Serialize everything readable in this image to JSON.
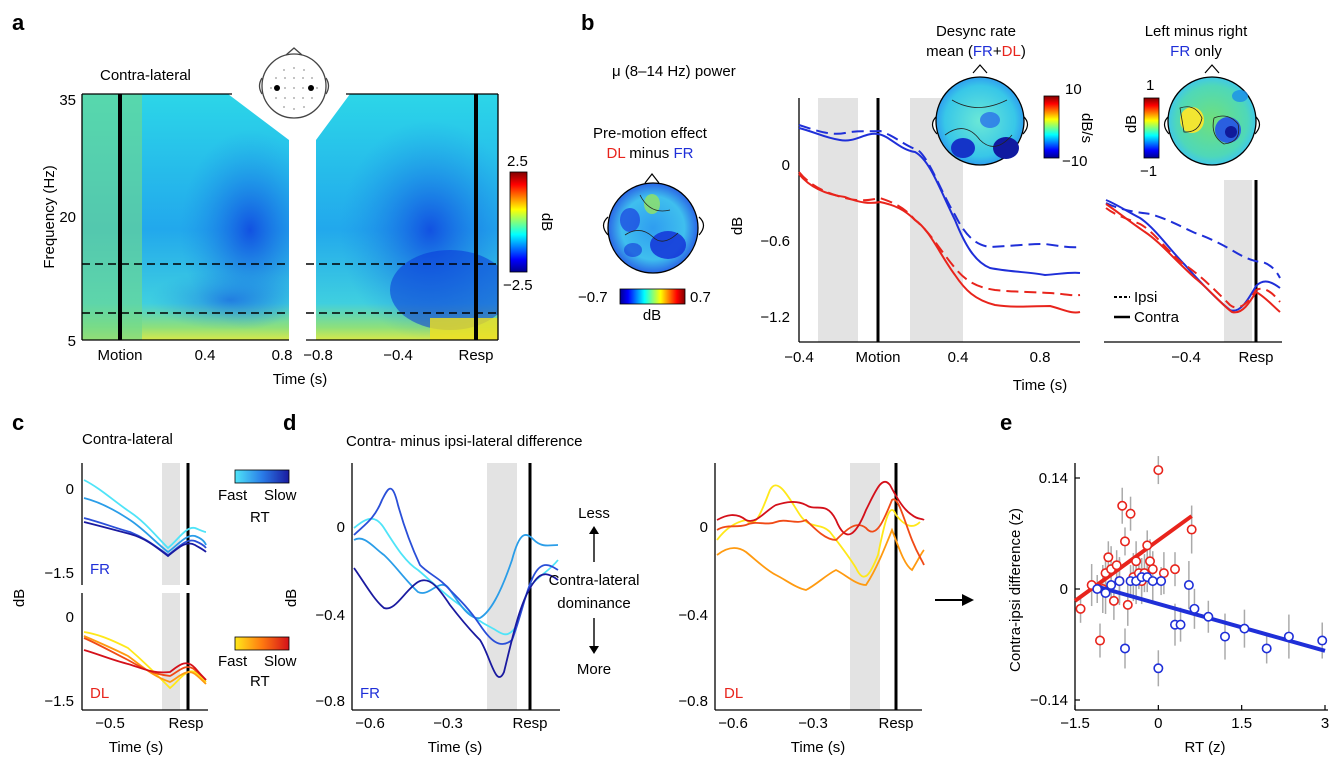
{
  "panel_letters": {
    "a": "a",
    "b": "b",
    "c": "c",
    "d": "d",
    "e": "e"
  },
  "colors": {
    "blue": "#1f2fd8",
    "red": "#e8241c",
    "shade": "#e3e3e3",
    "cyan": "#33d6f0"
  },
  "panel_a": {
    "title": "Contra-lateral",
    "ylabel": "Frequency (Hz)",
    "yticks": [
      "35",
      "20",
      "5"
    ],
    "xticks_left": [
      "Motion",
      "0.4",
      "0.8"
    ],
    "xticks_right": [
      "−0.8",
      "−0.4",
      "Resp"
    ],
    "xlabel": "Time (s)",
    "colorbar": {
      "max": "2.5",
      "min": "−2.5",
      "label": "dB"
    }
  },
  "panel_b": {
    "mu_label": "μ (8–14 Hz) power",
    "premotion": {
      "line1": "Pre-motion effect",
      "dl": "DL",
      "minus": " minus ",
      "fr": "FR",
      "cmin": "−0.7",
      "cmax": "0.7",
      "clabel": "dB"
    },
    "desync": {
      "line1": "Desync rate",
      "line2a": "mean (",
      "fr": "FR",
      "plus": "+",
      "dl": "DL",
      "close": ")",
      "cmax": "10",
      "cmin": "−10",
      "clabel": "dB/s"
    },
    "leftright": {
      "line1": "Left minus right",
      "fr": "FR",
      "only": " only",
      "cmax": "1",
      "cmin": "−1",
      "clabel": "dB"
    },
    "ylabel": "dB",
    "yticks": [
      "0",
      "−0.6",
      "−1.2"
    ],
    "xticks": [
      "−0.4",
      "Motion",
      "0.4",
      "0.8"
    ],
    "xlabel": "Time (s)",
    "xticks_right": [
      "−0.4",
      "Resp"
    ],
    "legend": {
      "ipsi": "Ipsi",
      "contra": "Contra"
    }
  },
  "panel_c": {
    "title": "Contra-lateral",
    "fr_label": "FR",
    "dl_label": "DL",
    "ylabel": "dB",
    "yticks_top": [
      "0",
      "−1.5"
    ],
    "yticks_bottom": [
      "0",
      "−1.5"
    ],
    "xticks": [
      "−0.5",
      "Resp"
    ],
    "xlabel": "Time (s)",
    "cbar_fr": {
      "fast": "Fast",
      "slow": "Slow",
      "rt": "RT"
    },
    "cbar_dl": {
      "fast": "Fast",
      "slow": "Slow",
      "rt": "RT"
    }
  },
  "panel_d": {
    "title": "Contra- minus ipsi-lateral difference",
    "ylabel": "dB",
    "yticks": [
      "0",
      "−0.4",
      "−0.8"
    ],
    "xticks": [
      "−0.6",
      "−0.3",
      "Resp"
    ],
    "xlabel": "Time (s)",
    "fr_label": "FR",
    "dl_label": "DL",
    "mid": {
      "less": "Less",
      "l1": "Contra-lateral",
      "l2": "dominance",
      "more": "More"
    }
  },
  "chart_data": [
    {
      "type": "scatter",
      "panel": "e",
      "xlabel": "RT (z)",
      "ylabel": "Contra-ipsi difference (z)",
      "xlim": [
        -1.5,
        3
      ],
      "ylim": [
        -0.14,
        0.14
      ],
      "xticks": [
        "−1.5",
        "0",
        "1.5",
        "3"
      ],
      "yticks": [
        "0.14",
        "0",
        "−0.14"
      ],
      "series": [
        {
          "name": "DL",
          "color": "#e8241c",
          "x": [
            -1.4,
            -1.2,
            -1.05,
            -1.0,
            -0.95,
            -0.9,
            -0.85,
            -0.8,
            -0.75,
            -0.7,
            -0.65,
            -0.6,
            -0.55,
            -0.5,
            -0.45,
            -0.4,
            -0.35,
            -0.3,
            -0.25,
            -0.2,
            -0.15,
            -0.1,
            0.0,
            0.1,
            0.3,
            0.6
          ],
          "y": [
            -0.025,
            0.005,
            -0.065,
            0.0,
            0.02,
            0.04,
            0.025,
            -0.015,
            0.03,
            0.01,
            0.105,
            0.06,
            -0.02,
            0.095,
            0.015,
            0.035,
            0.02,
            0.01,
            0.02,
            0.055,
            0.035,
            0.025,
            0.15,
            0.02,
            0.025,
            0.075
          ],
          "fit": {
            "x": [
              -1.5,
              0.6
            ],
            "y": [
              -0.015,
              0.092
            ]
          }
        },
        {
          "name": "FR",
          "color": "#1f2fd8",
          "x": [
            -1.1,
            -0.95,
            -0.85,
            -0.7,
            -0.6,
            -0.5,
            -0.4,
            -0.3,
            -0.2,
            -0.1,
            0.0,
            0.05,
            0.3,
            0.4,
            0.55,
            0.65,
            0.9,
            1.2,
            1.55,
            1.95,
            2.35,
            2.95
          ],
          "y": [
            0.0,
            -0.005,
            0.005,
            0.01,
            -0.075,
            0.01,
            0.01,
            0.015,
            0.015,
            0.01,
            -0.1,
            0.01,
            -0.045,
            -0.045,
            0.005,
            -0.025,
            -0.035,
            -0.06,
            -0.05,
            -0.075,
            -0.06,
            -0.065
          ],
          "fit": {
            "x": [
              -1.1,
              3.0
            ],
            "y": [
              0.003,
              -0.078
            ]
          }
        }
      ]
    }
  ]
}
